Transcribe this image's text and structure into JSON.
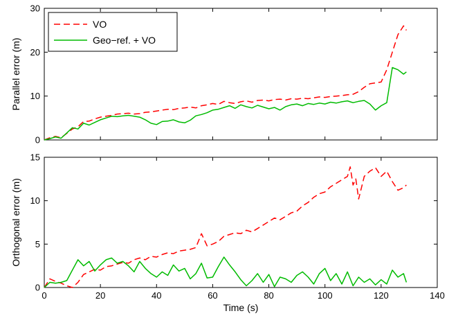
{
  "chart_data": [
    {
      "type": "line",
      "ylabel": "Parallel error (m)",
      "xlabel": "",
      "xlim": [
        0,
        140
      ],
      "ylim": [
        0,
        30
      ],
      "xticks": [
        0,
        20,
        40,
        60,
        80,
        100,
        120,
        140
      ],
      "yticks": [
        0,
        10,
        20,
        30
      ],
      "show_xtick_labels": false,
      "legend": {
        "placement": "top-left",
        "entries": [
          "VO",
          "Geo−ref. + VO"
        ]
      },
      "series": [
        {
          "name": "VO",
          "color": "#ff0000",
          "dash": true,
          "x": [
            0,
            2,
            4,
            6,
            8,
            10,
            12,
            14,
            16,
            18,
            20,
            22,
            24,
            26,
            28,
            30,
            32,
            34,
            36,
            38,
            40,
            42,
            44,
            46,
            48,
            50,
            52,
            54,
            56,
            58,
            60,
            62,
            64,
            66,
            68,
            70,
            72,
            74,
            76,
            78,
            80,
            82,
            84,
            86,
            88,
            90,
            92,
            94,
            96,
            98,
            100,
            102,
            104,
            106,
            108,
            110,
            112,
            114,
            116,
            118,
            120,
            122,
            124,
            126,
            128,
            129
          ],
          "values": [
            0,
            0.5,
            0.8,
            0.5,
            1.5,
            2.5,
            3.0,
            4.2,
            4.3,
            4.8,
            5.2,
            5.4,
            5.6,
            5.9,
            6.0,
            6.1,
            5.9,
            6.0,
            6.3,
            6.4,
            6.6,
            6.8,
            7.0,
            6.9,
            7.2,
            7.3,
            7.5,
            7.3,
            7.8,
            8.0,
            8.3,
            8.1,
            8.8,
            8.5,
            8.3,
            8.7,
            8.9,
            8.6,
            9.0,
            9.1,
            8.9,
            9.2,
            9.3,
            9.1,
            9.4,
            9.3,
            9.5,
            9.4,
            9.6,
            9.8,
            9.7,
            9.9,
            10.0,
            10.1,
            10.3,
            10.4,
            11.0,
            12.0,
            12.8,
            13.0,
            13.2,
            16.0,
            20.0,
            24.0,
            26.0,
            25.0
          ]
        },
        {
          "name": "Geo−ref. + VO",
          "color": "#00bb00",
          "dash": false,
          "x": [
            0,
            2,
            4,
            6,
            8,
            10,
            12,
            14,
            16,
            18,
            20,
            22,
            24,
            26,
            28,
            30,
            32,
            34,
            36,
            38,
            40,
            42,
            44,
            46,
            48,
            50,
            52,
            54,
            56,
            58,
            60,
            62,
            64,
            66,
            68,
            70,
            72,
            74,
            76,
            78,
            80,
            82,
            84,
            86,
            88,
            90,
            92,
            94,
            96,
            98,
            100,
            102,
            104,
            106,
            108,
            110,
            112,
            114,
            116,
            118,
            120,
            122,
            124,
            126,
            128,
            129
          ],
          "values": [
            0,
            0.3,
            0.7,
            0.4,
            1.6,
            2.8,
            2.5,
            3.8,
            3.4,
            4.0,
            4.6,
            5.0,
            5.4,
            5.3,
            5.5,
            5.6,
            5.4,
            5.2,
            4.6,
            3.8,
            3.5,
            4.2,
            4.3,
            4.6,
            4.1,
            3.9,
            4.5,
            5.5,
            5.8,
            6.2,
            6.8,
            7.0,
            7.4,
            7.8,
            7.2,
            8.0,
            7.6,
            7.3,
            7.9,
            7.5,
            7.1,
            7.4,
            6.8,
            7.6,
            8.0,
            8.2,
            7.8,
            8.3,
            8.1,
            8.4,
            8.2,
            8.6,
            8.4,
            8.7,
            8.9,
            8.5,
            8.8,
            9.0,
            8.2,
            6.8,
            7.8,
            8.5,
            16.5,
            16.0,
            15.0,
            15.5
          ]
        }
      ]
    },
    {
      "type": "line",
      "ylabel": "Orthogonal error (m)",
      "xlabel": "Time (s)",
      "xlim": [
        0,
        140
      ],
      "ylim": [
        0,
        15
      ],
      "xticks": [
        0,
        20,
        40,
        60,
        80,
        100,
        120,
        140
      ],
      "yticks": [
        0,
        5,
        10,
        15
      ],
      "show_xtick_labels": true,
      "series": [
        {
          "name": "VO",
          "color": "#ff0000",
          "dash": true,
          "x": [
            0,
            2,
            4,
            6,
            8,
            10,
            12,
            14,
            16,
            18,
            20,
            22,
            24,
            26,
            28,
            30,
            32,
            34,
            36,
            38,
            40,
            42,
            44,
            46,
            48,
            50,
            52,
            54,
            56,
            58,
            60,
            62,
            64,
            66,
            68,
            70,
            72,
            74,
            76,
            78,
            80,
            82,
            84,
            86,
            88,
            90,
            92,
            94,
            96,
            98,
            100,
            102,
            104,
            106,
            108,
            109,
            110,
            111,
            112,
            114,
            116,
            118,
            120,
            122,
            124,
            126,
            128,
            129
          ],
          "values": [
            0,
            1.0,
            0.7,
            0.5,
            0.2,
            0.0,
            0.6,
            1.5,
            1.8,
            2.1,
            2.0,
            2.4,
            2.5,
            2.7,
            2.9,
            2.8,
            3.2,
            3.4,
            3.2,
            3.6,
            3.5,
            3.8,
            4.0,
            3.9,
            4.2,
            4.3,
            4.4,
            4.6,
            6.2,
            4.8,
            5.0,
            5.3,
            5.9,
            6.1,
            6.3,
            6.2,
            6.6,
            6.4,
            6.8,
            7.2,
            7.6,
            8.0,
            7.8,
            8.2,
            8.6,
            8.8,
            9.4,
            9.8,
            10.4,
            10.8,
            11.0,
            11.6,
            12.0,
            12.4,
            12.8,
            13.9,
            11.8,
            12.5,
            10.2,
            12.8,
            13.4,
            13.8,
            12.8,
            13.4,
            12.2,
            11.2,
            11.5,
            11.8
          ]
        },
        {
          "name": "Geo−ref. + VO",
          "color": "#00bb00",
          "dash": false,
          "x": [
            0,
            2,
            4,
            6,
            8,
            10,
            12,
            14,
            16,
            18,
            20,
            22,
            24,
            26,
            28,
            30,
            32,
            34,
            36,
            38,
            40,
            42,
            44,
            46,
            48,
            50,
            52,
            54,
            56,
            58,
            60,
            62,
            64,
            66,
            68,
            70,
            72,
            74,
            76,
            78,
            80,
            82,
            84,
            86,
            88,
            90,
            92,
            94,
            96,
            98,
            100,
            102,
            104,
            106,
            108,
            110,
            112,
            114,
            116,
            118,
            120,
            122,
            124,
            126,
            128,
            129
          ],
          "values": [
            0,
            0.6,
            0.5,
            0.6,
            0.8,
            2.0,
            3.2,
            2.5,
            3.0,
            1.9,
            2.6,
            3.2,
            3.4,
            2.8,
            3.0,
            2.5,
            1.8,
            3.0,
            2.2,
            1.6,
            1.2,
            1.8,
            1.4,
            2.6,
            1.9,
            2.2,
            1.0,
            1.6,
            2.8,
            1.1,
            1.2,
            2.4,
            3.5,
            2.6,
            1.8,
            0.9,
            0.2,
            0.8,
            1.6,
            0.6,
            1.5,
            0.1,
            1.2,
            1.0,
            0.6,
            1.4,
            1.8,
            1.2,
            0.4,
            1.6,
            2.2,
            0.8,
            1.6,
            0.4,
            1.8,
            0.2,
            1.2,
            0.6,
            1.0,
            0.3,
            0.9,
            0.4,
            2.0,
            1.2,
            1.6,
            0.6
          ]
        }
      ]
    }
  ]
}
